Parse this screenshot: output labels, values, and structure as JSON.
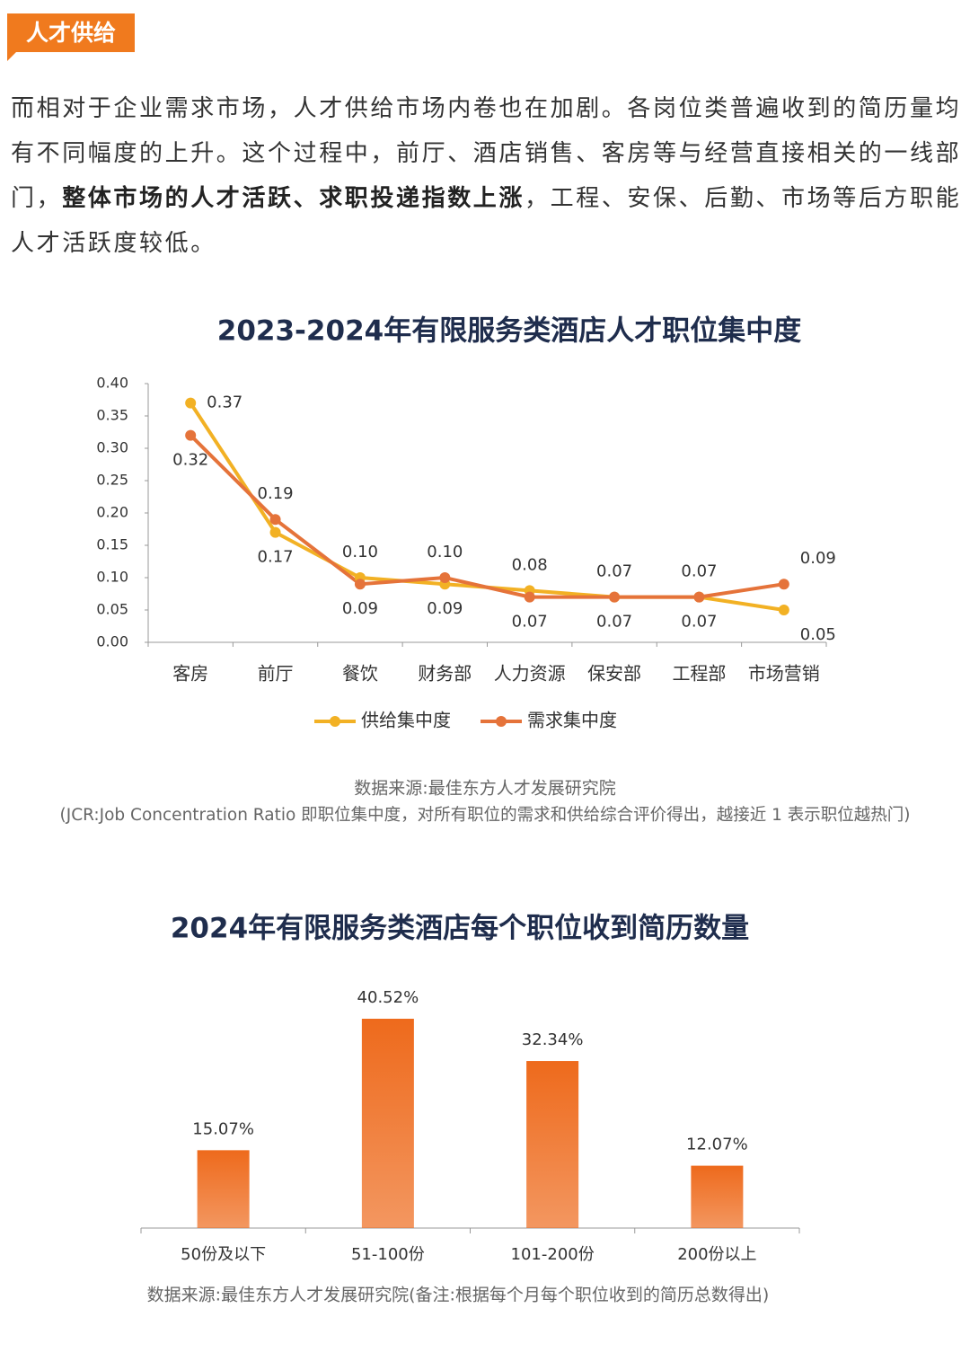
{
  "header": {
    "tag": "人才供给"
  },
  "paragraph": [
    "而相对于企业需求市场，人才供给市场内卷也在加剧。各岗位类普遍收到的简历量均有不同幅度的上升。这个过程中，前厅、酒店销售、客房等与经营直接相关的一线部门，",
    "整体市场的人才活跃、求职投递指数上涨",
    "，工程、安保、后勤、市场等后方职能人才活跃度较低。"
  ],
  "chart_data": [
    {
      "type": "line",
      "title": "2023-2024年有限服务类酒店人才职位集中度",
      "categories": [
        "客房",
        "前厅",
        "餐饮",
        "财务部",
        "人力资源",
        "保安部",
        "工程部",
        "市场营销"
      ],
      "series": [
        {
          "name": "供给集中度",
          "color": "#f2b124",
          "values": [
            0.37,
            0.17,
            0.1,
            0.09,
            0.08,
            0.07,
            0.07,
            0.05
          ],
          "value_labels": [
            "0.37",
            "0.17",
            "0.10",
            "0.09",
            "0.08",
            "0.07",
            "0.07",
            "0.05"
          ]
        },
        {
          "name": "需求集中度",
          "color": "#e5733a",
          "values": [
            0.32,
            0.19,
            0.09,
            0.1,
            0.07,
            0.07,
            0.07,
            0.09
          ],
          "value_labels": [
            "0.32",
            "0.19",
            "0.09",
            "0.10",
            "0.07",
            "0.07",
            "0.07",
            "0.09"
          ]
        }
      ],
      "ylim": [
        0,
        0.4
      ],
      "yticks": [
        {
          "value": 0,
          "label": "0.00"
        },
        {
          "value": 0.05,
          "label": "0.05"
        },
        {
          "value": 0.1,
          "label": "0.10"
        },
        {
          "value": 0.15,
          "label": "0.15"
        },
        {
          "value": 0.2,
          "label": "0.20"
        },
        {
          "value": 0.25,
          "label": "0.25"
        },
        {
          "value": 0.3,
          "label": "0.30"
        },
        {
          "value": 0.35,
          "label": "0.35"
        },
        {
          "value": 0.4,
          "label": "0.40"
        }
      ],
      "legend": "bottom",
      "source": "数据来源:最佳东方人才发展研究院",
      "note": "(JCR:Job Concentration Ratio 即职位集中度，对所有职位的需求和供给综合评价得出，越接近 1 表示职位越热门)"
    },
    {
      "type": "bar",
      "title": "2024年有限服务类酒店每个职位收到简历数量",
      "categories": [
        "50份及以下",
        "51-100份",
        "101-200份",
        "200份以上"
      ],
      "values": [
        15.07,
        40.52,
        32.34,
        12.07
      ],
      "value_labels": [
        "15.07%",
        "40.52%",
        "32.34%",
        "12.07%"
      ],
      "color": "#ee6a1c",
      "source": "数据来源:最佳东方人才发展研究院(备注:根据每个月每个职位收到的简历总数得出)"
    }
  ]
}
